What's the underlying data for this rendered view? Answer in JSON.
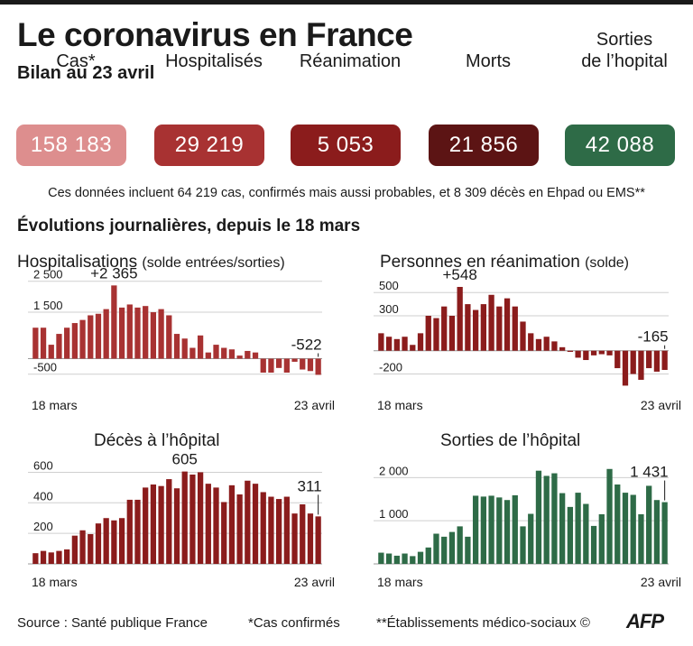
{
  "header": {
    "title": "Le coronavirus en France",
    "subtitle": "Bilan au 23 avril"
  },
  "kpis": [
    {
      "label": "Cas*",
      "value": "158 183",
      "color": "#dd8e8e"
    },
    {
      "label": "Hospitalisés",
      "value": "29 219",
      "color": "#a83232"
    },
    {
      "label": "Réanimation",
      "value": "5 053",
      "color": "#8b1c1c"
    },
    {
      "label": "Morts",
      "value": "21 856",
      "color": "#5c1414"
    },
    {
      "label": "Sorties\nde l’hopital",
      "value": "42 088",
      "color": "#2e6b47"
    }
  ],
  "note": "Ces données incluent 64 219 cas, confirmés mais aussi probables, et 8 309 décès en Ehpad ou EMS**",
  "section_title": "Évolutions journalières, depuis le 18 mars",
  "charts": [
    {
      "title": "Hospitalisations",
      "title_sub": "(solde entrées/sorties)"
    },
    {
      "title": "Personnes en réanimation",
      "title_sub": "(solde)"
    },
    {
      "title": "Décès à l’hôpital",
      "title_sub": ""
    },
    {
      "title": "Sorties de l’hôpital",
      "title_sub": ""
    }
  ],
  "chart_data": [
    {
      "type": "bar",
      "title": "Hospitalisations (solde entrées/sorties)",
      "color": "#a83232",
      "x_start_label": "18 mars",
      "x_end_label": "23 avril",
      "yticks": [
        -500,
        1500,
        2500
      ],
      "ytick_labels": [
        "-500",
        "1 500",
        "2 500"
      ],
      "ylim": [
        -800,
        2550
      ],
      "annotations": [
        {
          "index": 10,
          "text": "+2 365"
        },
        {
          "index": 36,
          "text": "-522"
        }
      ],
      "values": [
        1000,
        1000,
        450,
        800,
        1000,
        1150,
        1250,
        1400,
        1450,
        1600,
        2365,
        1650,
        1750,
        1650,
        1700,
        1500,
        1600,
        1400,
        800,
        650,
        350,
        750,
        200,
        450,
        350,
        300,
        100,
        250,
        200,
        -450,
        -450,
        -300,
        -450,
        -100,
        -350,
        -400,
        -522
      ]
    },
    {
      "type": "bar",
      "title": "Personnes en réanimation (solde)",
      "color": "#8b1c1c",
      "x_start_label": "18 mars",
      "x_end_label": "23 avril",
      "yticks": [
        -200,
        300,
        500
      ],
      "ytick_labels": [
        "-200",
        "300",
        "500"
      ],
      "ylim": [
        -320,
        610
      ],
      "annotations": [
        {
          "index": 10,
          "text": "+548"
        },
        {
          "index": 36,
          "text": "-165"
        }
      ],
      "values": [
        150,
        120,
        100,
        120,
        50,
        150,
        300,
        280,
        380,
        300,
        548,
        400,
        350,
        400,
        480,
        380,
        450,
        380,
        250,
        150,
        100,
        120,
        80,
        30,
        -10,
        -60,
        -80,
        -40,
        -30,
        -40,
        -150,
        -300,
        -200,
        -250,
        -150,
        -180,
        -165
      ]
    },
    {
      "type": "bar",
      "title": "Décès à l’hôpital",
      "color": "#8b1c1c",
      "x_start_label": "18 mars",
      "x_end_label": "23 avril",
      "yticks": [
        200,
        400,
        600
      ],
      "ytick_labels": [
        "200",
        "400",
        "600"
      ],
      "ylim": [
        0,
        650
      ],
      "annotations": [
        {
          "index": 19,
          "text": "605"
        },
        {
          "index": 36,
          "text": "311"
        }
      ],
      "values": [
        70,
        85,
        75,
        85,
        95,
        185,
        220,
        195,
        265,
        300,
        285,
        300,
        420,
        420,
        500,
        520,
        510,
        555,
        495,
        605,
        585,
        600,
        525,
        500,
        405,
        515,
        455,
        545,
        525,
        470,
        440,
        425,
        440,
        330,
        390,
        330,
        311
      ]
    },
    {
      "type": "bar",
      "title": "Sorties de l’hôpital",
      "color": "#2e6b47",
      "x_start_label": "18 mars",
      "x_end_label": "23 avril",
      "yticks": [
        1000,
        2000
      ],
      "ytick_labels": [
        "1 000",
        "2 000"
      ],
      "ylim": [
        0,
        2300
      ],
      "annotations": [
        {
          "index": 36,
          "text": "1 431"
        }
      ],
      "values": [
        260,
        240,
        190,
        240,
        180,
        280,
        380,
        700,
        630,
        740,
        870,
        630,
        1580,
        1560,
        1580,
        1540,
        1480,
        1590,
        870,
        1160,
        2160,
        2040,
        2100,
        1640,
        1320,
        1650,
        1390,
        880,
        1150,
        2200,
        1840,
        1650,
        1600,
        1150,
        1810,
        1480,
        1431
      ]
    }
  ],
  "footer": {
    "source": "Source : Santé publique France",
    "cas_note": "*Cas confirmés",
    "ems_note": "**Établissements médico-sociaux ©",
    "logo": "AFP"
  }
}
